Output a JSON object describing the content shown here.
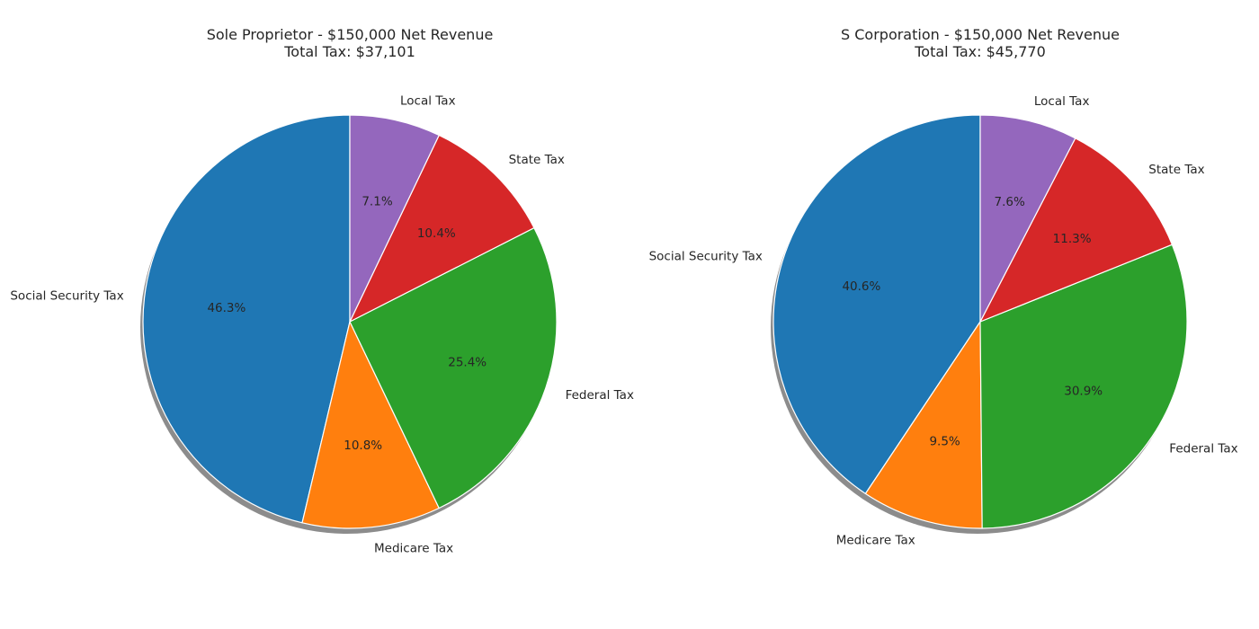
{
  "chart_data": [
    {
      "type": "pie",
      "title": "Sole Proprietor - $150,000 Net Revenue",
      "subtitle": "Total Tax: $37,101",
      "categories": [
        "Social Security Tax",
        "Medicare Tax",
        "Federal Tax",
        "State Tax",
        "Local Tax"
      ],
      "values": [
        46.3,
        10.8,
        25.4,
        10.4,
        7.1
      ],
      "value_labels": [
        "46.3%",
        "10.8%",
        "25.4%",
        "10.4%",
        "7.1%"
      ],
      "colors": [
        "#1f77b4",
        "#ff7f0e",
        "#2ca02c",
        "#d62728",
        "#9467bd"
      ],
      "start_angle_deg": 90,
      "direction": "counterclockwise",
      "shadow": true
    },
    {
      "type": "pie",
      "title": "S Corporation - $150,000 Net Revenue",
      "subtitle": "Total Tax: $45,770",
      "categories": [
        "Social Security Tax",
        "Medicare Tax",
        "Federal Tax",
        "State Tax",
        "Local Tax"
      ],
      "values": [
        40.6,
        9.5,
        30.9,
        11.3,
        7.6
      ],
      "value_labels": [
        "40.6%",
        "9.5%",
        "30.9%",
        "11.3%",
        "7.6%"
      ],
      "colors": [
        "#1f77b4",
        "#ff7f0e",
        "#2ca02c",
        "#d62728",
        "#9467bd"
      ],
      "start_angle_deg": 90,
      "direction": "counterclockwise",
      "shadow": true
    }
  ]
}
